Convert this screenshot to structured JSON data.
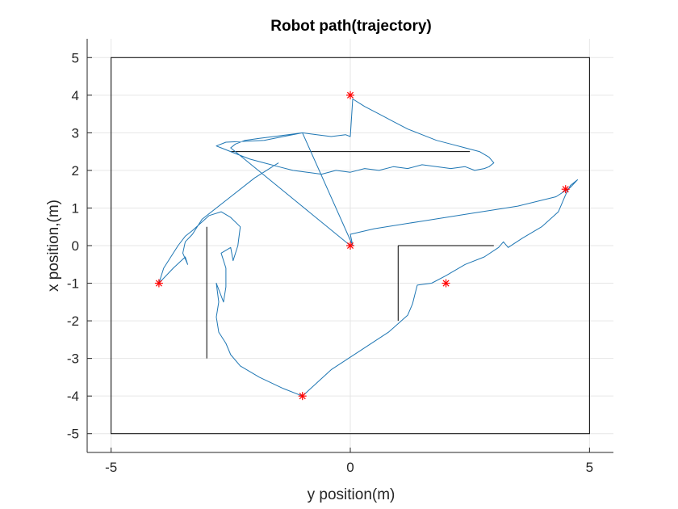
{
  "chart_data": {
    "type": "line",
    "title": "Robot path(trajectory)",
    "xlabel": "y position(m)",
    "ylabel": "x position,(m)",
    "xlim": [
      -5.5,
      5.5
    ],
    "ylim": [
      -5.5,
      5.5
    ],
    "grid": true,
    "colors": {
      "path": "#1f77b4",
      "waypoint": "#ff0000",
      "boundary": "#000000",
      "grid": "#e6e6e6",
      "axis": "#262626"
    },
    "x_ticks": [
      {
        "value": -5,
        "label": "-5"
      },
      {
        "value": 0,
        "label": "0"
      },
      {
        "value": 5,
        "label": "5"
      }
    ],
    "y_ticks": [
      {
        "value": 5,
        "label": "5"
      },
      {
        "value": 4,
        "label": "4"
      },
      {
        "value": 3,
        "label": "3"
      },
      {
        "value": 2,
        "label": "2"
      },
      {
        "value": 1,
        "label": "1"
      },
      {
        "value": 0,
        "label": "0"
      },
      {
        "value": -1,
        "label": "-1"
      },
      {
        "value": -2,
        "label": "-2"
      },
      {
        "value": -3,
        "label": "-3"
      },
      {
        "value": -4,
        "label": "-4"
      },
      {
        "value": -5,
        "label": "-5"
      }
    ],
    "boundary": {
      "x": [
        -5,
        5
      ],
      "y": [
        -5,
        5
      ]
    },
    "walls": [
      {
        "x": [
          -2.5,
          2.5
        ],
        "y": [
          2.5,
          2.5
        ]
      },
      {
        "x": [
          -3,
          -3
        ],
        "y": [
          0.5,
          -3
        ]
      },
      {
        "x": [
          1,
          3
        ],
        "y": [
          0,
          0
        ]
      },
      {
        "x": [
          1,
          1
        ],
        "y": [
          0,
          -2
        ]
      }
    ],
    "waypoints": [
      {
        "x": 0,
        "y": 0
      },
      {
        "x": 0,
        "y": 4
      },
      {
        "x": 4.5,
        "y": 1.5
      },
      {
        "x": 2,
        "y": -1
      },
      {
        "x": -1,
        "y": -4
      },
      {
        "x": -4,
        "y": -1
      }
    ],
    "path": {
      "x": [
        0,
        -2.5,
        -2.4,
        -2.2,
        -1.9,
        -1.6,
        -1.3,
        -1,
        -0.7,
        -0.4,
        -0.1,
        0,
        0.05,
        0.3,
        0.6,
        0.9,
        1.2,
        1.5,
        1.8,
        2.1,
        2.4,
        2.7,
        2.9,
        3.0,
        2.9,
        2.8,
        2.6,
        2.4,
        2.1,
        1.8,
        1.5,
        1.2,
        0.9,
        0.6,
        0.3,
        0,
        -0.3,
        -0.6,
        -0.9,
        -1.2,
        -1.5,
        -1.8,
        -2.1,
        -2.4,
        -2.7,
        -2.8,
        -2.6,
        -1.8,
        -1.4,
        -1.0,
        0.05,
        0,
        0.5,
        1.5,
        2.5,
        3.5,
        4.3,
        4.6,
        4.75,
        4.6,
        4.5,
        4.35,
        4.0,
        3.6,
        3.3,
        3.2,
        3.1,
        2.8,
        2.4,
        2.0,
        1.7,
        1.4,
        1.35,
        1.3,
        1.2,
        0.8,
        0.2,
        -0.4,
        -1.0,
        -1.4,
        -1.9,
        -2.3,
        -2.5,
        -2.6,
        -2.75,
        -2.8,
        -2.75,
        -2.8,
        -2.65,
        -2.6,
        -2.6,
        -2.7,
        -2.5,
        -2.45,
        -2.35,
        -2.3,
        -2.5,
        -2.7,
        -2.95,
        -3.3,
        -3.45,
        -3.6,
        -3.9,
        -4.0,
        -3.7,
        -3.45,
        -3.4,
        -3.5,
        -3.45,
        -3.3,
        -3.1,
        -2.6,
        -2.0,
        -1.5
      ],
      "y": [
        0,
        2.6,
        2.7,
        2.8,
        2.85,
        2.9,
        2.95,
        3.0,
        2.95,
        2.9,
        2.95,
        2.9,
        3.9,
        3.7,
        3.5,
        3.3,
        3.1,
        2.95,
        2.8,
        2.7,
        2.6,
        2.5,
        2.35,
        2.2,
        2.1,
        2.05,
        2.0,
        2.1,
        2.05,
        2.1,
        2.15,
        2.05,
        2.1,
        2.0,
        2.05,
        1.95,
        2.0,
        1.9,
        1.95,
        2.0,
        2.1,
        2.2,
        2.3,
        2.45,
        2.6,
        2.65,
        2.75,
        2.8,
        2.9,
        3.0,
        0,
        0.3,
        0.45,
        0.65,
        0.85,
        1.05,
        1.3,
        1.55,
        1.75,
        1.6,
        1.35,
        0.9,
        0.5,
        0.2,
        -0.05,
        0.1,
        -0.05,
        -0.3,
        -0.5,
        -0.8,
        -1.0,
        -1.05,
        -1.3,
        -1.55,
        -1.85,
        -2.3,
        -2.8,
        -3.3,
        -4.0,
        -3.8,
        -3.5,
        -3.2,
        -2.9,
        -2.6,
        -2.3,
        -1.9,
        -1.5,
        -1.0,
        -1.5,
        -1.1,
        -0.6,
        -0.2,
        -0.05,
        -0.4,
        0.0,
        0.5,
        0.75,
        0.9,
        0.8,
        0.4,
        0.25,
        0.0,
        -0.6,
        -1.0,
        -0.6,
        -0.3,
        -0.5,
        -0.2,
        0.1,
        0.3,
        0.7,
        1.2,
        1.8,
        2.2
      ]
    }
  }
}
